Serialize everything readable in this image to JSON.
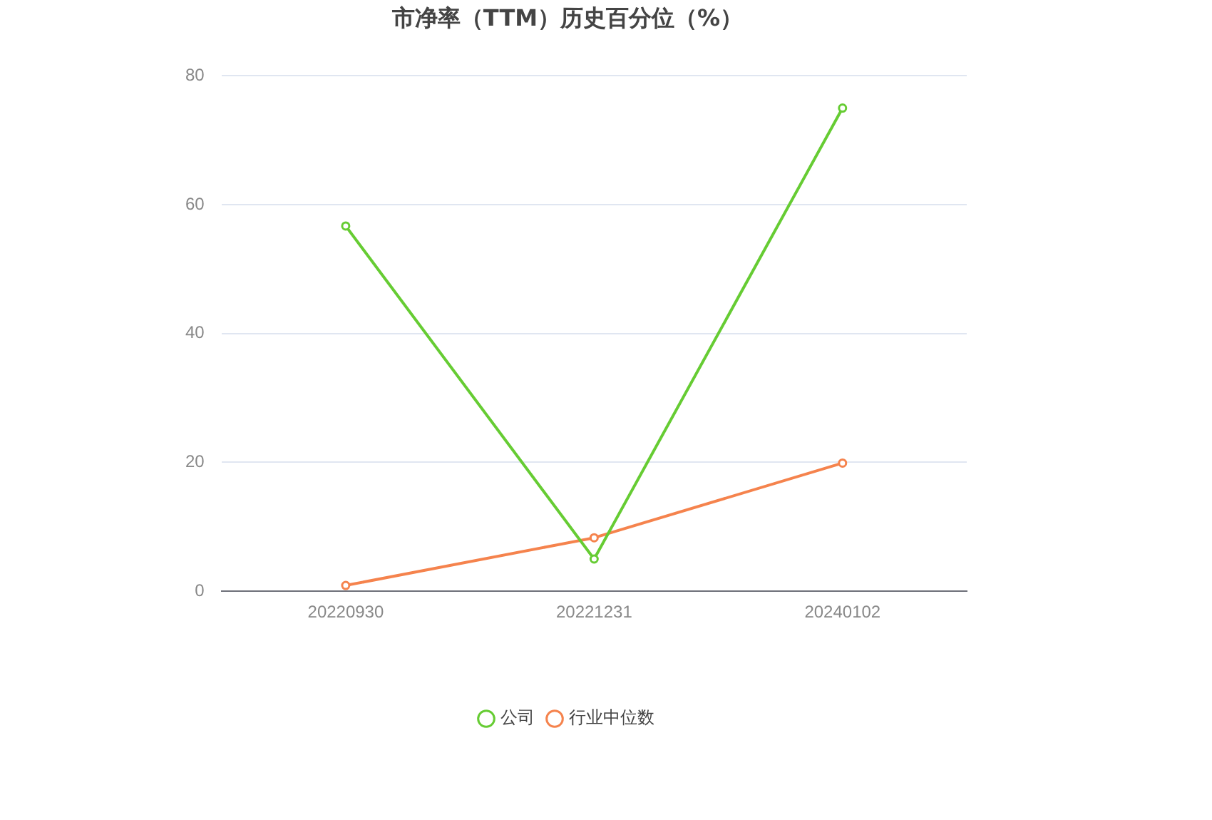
{
  "chart_data": {
    "type": "line",
    "title": "市净率（TTM）历史百分位（%）",
    "categories": [
      "20220930",
      "20221231",
      "20240102"
    ],
    "series": [
      {
        "name": "公司",
        "color": "#66cc33",
        "values": [
          56.7,
          5.0,
          75.0
        ]
      },
      {
        "name": "行业中位数",
        "color": "#f5834d",
        "values": [
          0.9,
          8.3,
          19.9
        ]
      }
    ],
    "ylim": [
      0,
      80
    ],
    "yticks": [
      0,
      20,
      40,
      60,
      80
    ],
    "grid": "y",
    "legend": "bottom",
    "marker": "circle",
    "line_style": "solid"
  }
}
